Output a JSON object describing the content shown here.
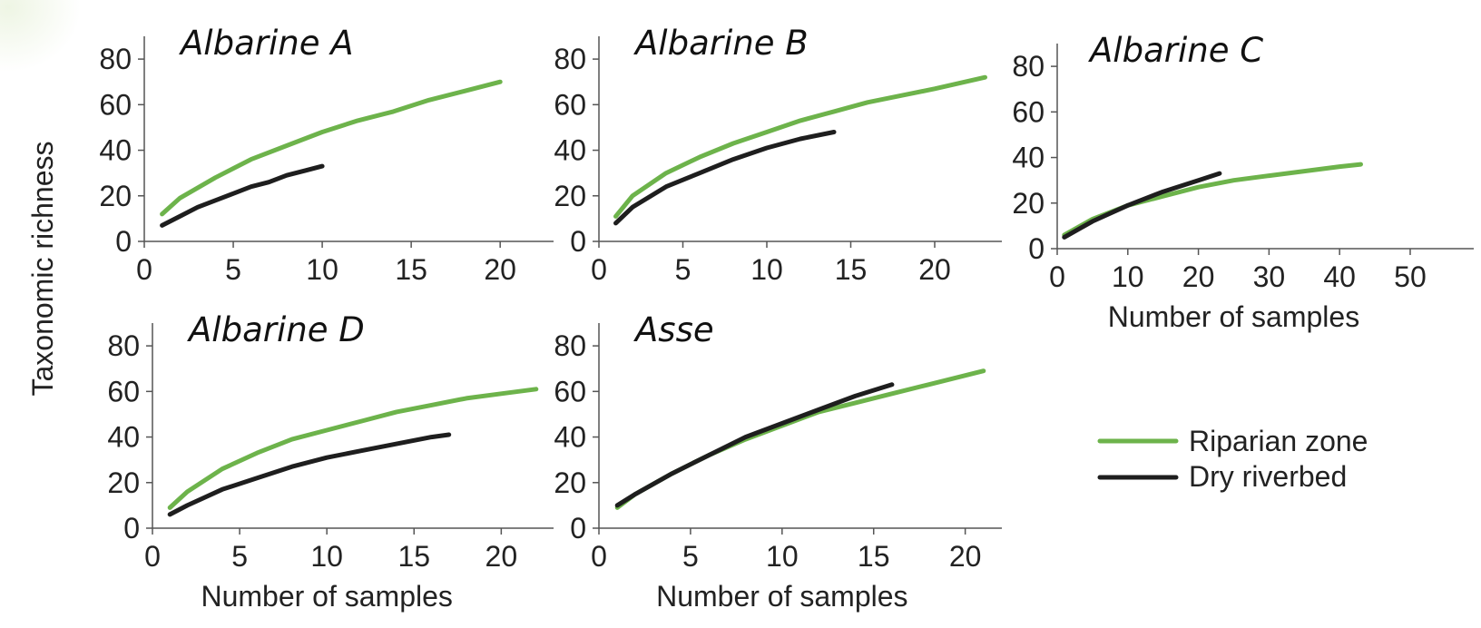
{
  "ylabel_shared": "Taxonomic richness",
  "legend": {
    "placement": "right",
    "items": [
      {
        "label": "Riparian zone",
        "color": "#6db34b"
      },
      {
        "label": "Dry riverbed",
        "color": "#1e1e1e"
      }
    ]
  },
  "chart_data": [
    {
      "type": "line",
      "title": "Albarine A",
      "xlabel": "",
      "ylabel": "",
      "xlim": [
        0,
        23
      ],
      "ylim": [
        0,
        90
      ],
      "xticks": [
        0,
        5,
        10,
        15,
        20
      ],
      "yticks": [
        0,
        20,
        40,
        60,
        80
      ],
      "series": [
        {
          "name": "Riparian zone",
          "color": "#6db34b",
          "x": [
            1,
            2,
            4,
            6,
            8,
            10,
            12,
            14,
            16,
            18,
            20
          ],
          "y": [
            12,
            19,
            28,
            36,
            42,
            48,
            53,
            57,
            62,
            66,
            70
          ]
        },
        {
          "name": "Dry riverbed",
          "color": "#1e1e1e",
          "x": [
            1,
            2,
            3,
            4,
            5,
            6,
            7,
            8,
            9,
            10
          ],
          "y": [
            7,
            11,
            15,
            18,
            21,
            24,
            26,
            29,
            31,
            33
          ]
        }
      ]
    },
    {
      "type": "line",
      "title": "Albarine B",
      "xlabel": "",
      "ylabel": "",
      "xlim": [
        0,
        24
      ],
      "ylim": [
        0,
        90
      ],
      "xticks": [
        0,
        5,
        10,
        15,
        20
      ],
      "yticks": [
        0,
        20,
        40,
        60,
        80
      ],
      "series": [
        {
          "name": "Riparian zone",
          "color": "#6db34b",
          "x": [
            1,
            2,
            4,
            6,
            8,
            10,
            12,
            14,
            16,
            18,
            20,
            23
          ],
          "y": [
            11,
            20,
            30,
            37,
            43,
            48,
            53,
            57,
            61,
            64,
            67,
            72
          ]
        },
        {
          "name": "Dry riverbed",
          "color": "#1e1e1e",
          "x": [
            1,
            2,
            4,
            6,
            8,
            10,
            12,
            14
          ],
          "y": [
            8,
            15,
            24,
            30,
            36,
            41,
            45,
            48
          ]
        }
      ]
    },
    {
      "type": "line",
      "title": "Albarine C",
      "xlabel": "Number of samples",
      "ylabel": "",
      "xlim": [
        0,
        59
      ],
      "ylim": [
        0,
        90
      ],
      "xticks": [
        0,
        10,
        20,
        30,
        40,
        50
      ],
      "yticks": [
        0,
        20,
        40,
        60,
        80
      ],
      "series": [
        {
          "name": "Riparian zone",
          "color": "#6db34b",
          "x": [
            1,
            5,
            10,
            15,
            20,
            25,
            30,
            35,
            40,
            43
          ],
          "y": [
            6,
            13,
            19,
            23,
            27,
            30,
            32,
            34,
            36,
            37
          ]
        },
        {
          "name": "Dry riverbed",
          "color": "#1e1e1e",
          "x": [
            1,
            5,
            10,
            15,
            20,
            23
          ],
          "y": [
            5,
            12,
            19,
            25,
            30,
            33
          ]
        }
      ]
    },
    {
      "type": "line",
      "title": "Albarine D",
      "xlabel": "Number of samples",
      "ylabel": "",
      "xlim": [
        0,
        23
      ],
      "ylim": [
        0,
        90
      ],
      "xticks": [
        0,
        5,
        10,
        15,
        20
      ],
      "yticks": [
        0,
        20,
        40,
        60,
        80
      ],
      "series": [
        {
          "name": "Riparian zone",
          "color": "#6db34b",
          "x": [
            1,
            2,
            4,
            6,
            8,
            10,
            12,
            14,
            16,
            18,
            20,
            22
          ],
          "y": [
            9,
            16,
            26,
            33,
            39,
            43,
            47,
            51,
            54,
            57,
            59,
            61
          ]
        },
        {
          "name": "Dry riverbed",
          "color": "#1e1e1e",
          "x": [
            1,
            2,
            4,
            6,
            8,
            10,
            12,
            14,
            16,
            17
          ],
          "y": [
            6,
            10,
            17,
            22,
            27,
            31,
            34,
            37,
            40,
            41
          ]
        }
      ]
    },
    {
      "type": "line",
      "title": "Asse",
      "xlabel": "Number of samples",
      "ylabel": "",
      "xlim": [
        0,
        22
      ],
      "ylim": [
        0,
        90
      ],
      "xticks": [
        0,
        5,
        10,
        15,
        20
      ],
      "yticks": [
        0,
        20,
        40,
        60,
        80
      ],
      "series": [
        {
          "name": "Riparian zone",
          "color": "#6db34b",
          "x": [
            1,
            2,
            4,
            6,
            8,
            10,
            12,
            14,
            16,
            18,
            21
          ],
          "y": [
            9,
            15,
            24,
            32,
            39,
            45,
            51,
            55,
            59,
            63,
            69
          ]
        },
        {
          "name": "Dry riverbed",
          "color": "#1e1e1e",
          "x": [
            1,
            2,
            4,
            6,
            8,
            10,
            12,
            14,
            16
          ],
          "y": [
            10,
            15,
            24,
            32,
            40,
            46,
            52,
            58,
            63
          ]
        }
      ]
    }
  ]
}
